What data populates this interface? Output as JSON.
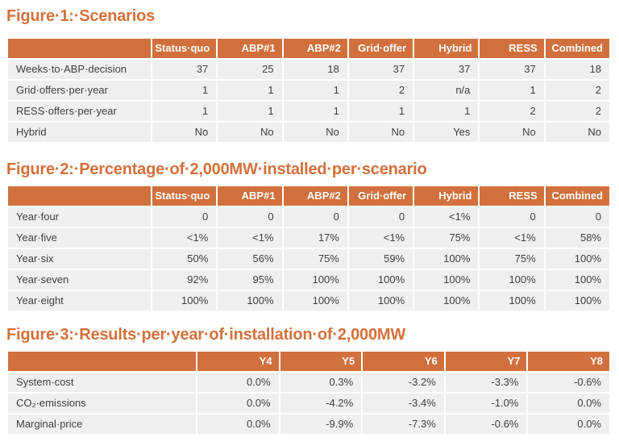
{
  "colors": {
    "accent_orange": "#d1703c",
    "title_orange": "#d4703a",
    "row_background": "#efefef",
    "header_text": "#ffffff",
    "body_text": "#3f3f3f"
  },
  "figures": [
    {
      "title": "Figure·1:·Scenarios",
      "columns": [
        "Status·quo",
        "ABP#1",
        "ABP#2",
        "Grid·offer",
        "Hybrid",
        "RESS",
        "Combined"
      ],
      "rows": [
        {
          "label": "Weeks·to·ABP·decision",
          "values": [
            "37",
            "25",
            "18",
            "37",
            "37",
            "37",
            "18"
          ]
        },
        {
          "label": "Grid·offers·per·year",
          "values": [
            "1",
            "1",
            "1",
            "2",
            "n/a",
            "1",
            "2"
          ]
        },
        {
          "label": "RESS·offers·per·year",
          "values": [
            "1",
            "1",
            "1",
            "1",
            "1",
            "2",
            "2"
          ]
        },
        {
          "label": "Hybrid",
          "values": [
            "No",
            "No",
            "No",
            "No",
            "Yes",
            "No",
            "No"
          ]
        }
      ]
    },
    {
      "title": "Figure·2:·Percentage·of·2,000MW·installed·per·scenario",
      "columns": [
        "Status·quo",
        "ABP#1",
        "ABP#2",
        "Grid·offer",
        "Hybrid",
        "RESS",
        "Combined"
      ],
      "rows": [
        {
          "label": "Year·four",
          "values": [
            "0",
            "0",
            "0",
            "0",
            "<1%",
            "0",
            "0"
          ]
        },
        {
          "label": "Year·five",
          "values": [
            "<1%",
            "<1%",
            "17%",
            "<1%",
            "75%",
            "<1%",
            "58%"
          ]
        },
        {
          "label": "Year·six",
          "values": [
            "50%",
            "56%",
            "75%",
            "59%",
            "100%",
            "75%",
            "100%"
          ]
        },
        {
          "label": "Year·seven",
          "values": [
            "92%",
            "95%",
            "100%",
            "100%",
            "100%",
            "100%",
            "100%"
          ]
        },
        {
          "label": "Year·eight",
          "values": [
            "100%",
            "100%",
            "100%",
            "100%",
            "100%",
            "100%",
            "100%"
          ]
        }
      ]
    },
    {
      "title": "Figure·3:·Results·per·year·of·installation·of·2,000MW",
      "columns": [
        "Y4",
        "Y5",
        "Y6",
        "Y7",
        "Y8"
      ],
      "rows": [
        {
          "label": "System·cost",
          "values": [
            "0.0%",
            "0.3%",
            "-3.2%",
            "-3.3%",
            "-0.6%"
          ]
        },
        {
          "label": "CO₂·emissions",
          "values": [
            "0.0%",
            "-4.2%",
            "-3.4%",
            "-1.0%",
            "0.0%"
          ]
        },
        {
          "label": "Marginal·price",
          "values": [
            "0.0%",
            "-9.9%",
            "-7.3%",
            "-0.6%",
            "0.0%"
          ]
        }
      ]
    }
  ]
}
